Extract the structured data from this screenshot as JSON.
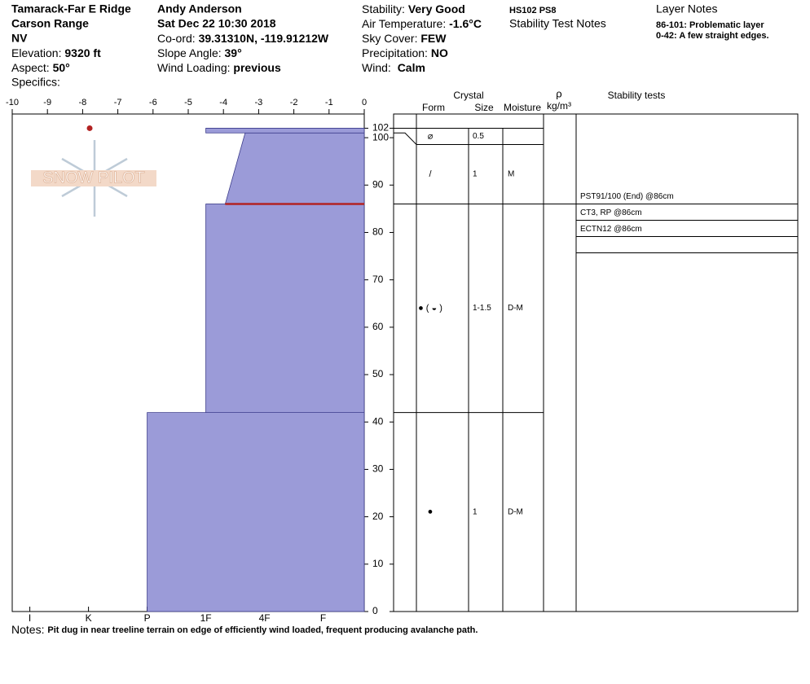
{
  "header": {
    "location": [
      "Tamarack-Far E Ridge",
      "Carson Range",
      "NV"
    ],
    "elevation": {
      "label": "Elevation:",
      "value": "9320 ft"
    },
    "aspect": {
      "label": "Aspect:",
      "value": "50°"
    },
    "specifics": {
      "label": "Specifics:"
    },
    "observer": "Andy Anderson",
    "date": "Sat Dec 22 10:30 2018",
    "coord": {
      "label": "Co-ord:",
      "value": "39.31310N, -119.91212W"
    },
    "slope_angle": {
      "label": "Slope Angle:",
      "value": "39°"
    },
    "wind_loading": {
      "label": "Wind Loading:",
      "value": "previous"
    },
    "stability": {
      "label": "Stability:",
      "value": "Very Good"
    },
    "air_temperature": {
      "label": "Air Temperature:",
      "value": "-1.6°C"
    },
    "sky_cover": {
      "label": "Sky Cover:",
      "value": "FEW"
    },
    "precipitation": {
      "label": "Precipitation:",
      "value": "NO"
    },
    "wind": {
      "label": "Wind:",
      "value": "Calm"
    },
    "hs_ps": "HS102 PS8",
    "stability_test_notes_title": "Stability Test Notes",
    "layer_notes_title": "Layer Notes",
    "layer_notes": [
      "86-101: Problematic layer",
      "0-42: A few straight edges."
    ]
  },
  "chart_data": {
    "type": "snow-profile",
    "logo": "SNOW PILOT",
    "temperature_xlim": [
      -10,
      0
    ],
    "temperature_ticks": [
      -10,
      -9,
      -8,
      -7,
      -6,
      -5,
      -4,
      -3,
      -2,
      -1,
      0
    ],
    "hardness_xlim": [
      6.3,
      0.3
    ],
    "hardness_ticks": [
      {
        "value": 6,
        "label": "I"
      },
      {
        "value": 5,
        "label": "K"
      },
      {
        "value": 4,
        "label": "P"
      },
      {
        "value": 3,
        "label": "1F"
      },
      {
        "value": 2,
        "label": "4F"
      },
      {
        "value": 1,
        "label": "F"
      }
    ],
    "ylim": [
      0,
      105
    ],
    "yticks": [
      0,
      10,
      20,
      30,
      40,
      50,
      60,
      70,
      80,
      90,
      100,
      102
    ],
    "color": "#9b9bd8",
    "layers": [
      {
        "bottom": 0,
        "top": 42,
        "hardness_bottom": 4,
        "hardness_top": 4,
        "form": "●",
        "size": "1",
        "moisture": "D-M"
      },
      {
        "bottom": 42,
        "top": 86,
        "hardness_bottom": 3,
        "hardness_top": 3,
        "form": "● ( ◒ )",
        "size": "1-1.5",
        "moisture": "D-M"
      },
      {
        "bottom": 86,
        "top": 101,
        "hardness_bottom": 2.67,
        "hardness_top": 2.33,
        "form": "/",
        "size": "1",
        "moisture": "M"
      },
      {
        "bottom": 101,
        "top": 102,
        "hardness_bottom": 3,
        "hardness_top": 3,
        "form": "⌀",
        "size": "0.5"
      }
    ],
    "temperatures": [
      {
        "depth": 102,
        "temp": -7.8
      }
    ],
    "temperature_color": "#b22222",
    "critical_depth": 86,
    "critical_color": "#b22222",
    "columns": {
      "crystal": "Crystal",
      "form": "Form",
      "size": "Size",
      "moisture": "Moisture",
      "density": "ρ",
      "density_unit": "kg/m³",
      "stability_tests": "Stability tests"
    },
    "stability_tests": [
      "PST91/100 (End) @86cm",
      "CT3, RP @86cm",
      "ECTN12 @86cm"
    ]
  },
  "footer": {
    "label": "Notes:",
    "text": "Pit dug in near treeline terrain on edge of efficiently wind loaded, frequent producing avalanche path."
  }
}
